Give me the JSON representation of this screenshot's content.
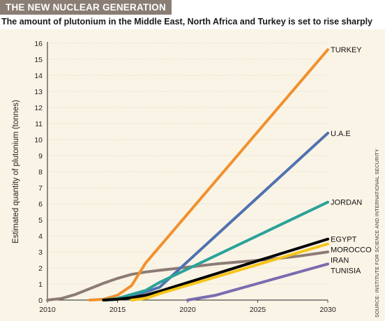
{
  "header": {
    "title": "THE NEW NUCLEAR GENERATION",
    "subtitle": "The amount of plutonium in the Middle East, North Africa and Turkey is set to rise sharply"
  },
  "source": "SOURCE: INSTITUTE FOR SCIENCE AND INTERNATIONAL SECURITY",
  "colors": {
    "banner": "#8a7d74",
    "plot_background": "#faf4e6",
    "grid": "#c8bfae"
  },
  "chart_data": {
    "type": "line",
    "title": "The amount of plutonium in the Middle East, North Africa and Turkey is set to rise sharply",
    "xlabel": "",
    "ylabel": "Estimated quantity of plutonium (tonnes)",
    "xlim": [
      2010,
      2030
    ],
    "ylim": [
      0,
      16
    ],
    "x_ticks": [
      2010,
      2015,
      2020,
      2025,
      2030
    ],
    "y_ticks": [
      0,
      1,
      2,
      3,
      4,
      5,
      6,
      7,
      8,
      9,
      10,
      11,
      12,
      13,
      14,
      15,
      16
    ],
    "grid": "horizontal",
    "legend": "labels at right end of each line",
    "series": [
      {
        "name": "IRAN",
        "color": "#8c7b75",
        "points": [
          [
            2010,
            0
          ],
          [
            2011,
            0.1
          ],
          [
            2012,
            0.35
          ],
          [
            2013,
            0.7
          ],
          [
            2014,
            1.05
          ],
          [
            2015,
            1.35
          ],
          [
            2016,
            1.6
          ],
          [
            2017,
            1.75
          ],
          [
            2018,
            1.85
          ],
          [
            2019,
            1.95
          ],
          [
            2020,
            2.05
          ],
          [
            2022,
            2.25
          ],
          [
            2024,
            2.4
          ],
          [
            2026,
            2.55
          ],
          [
            2028,
            2.75
          ],
          [
            2030,
            3.0
          ]
        ]
      },
      {
        "name": "TURKEY",
        "color": "#f0912e",
        "points": [
          [
            2013,
            0
          ],
          [
            2014,
            0.05
          ],
          [
            2015,
            0.3
          ],
          [
            2016,
            0.9
          ],
          [
            2017,
            2.3
          ],
          [
            2030,
            15.6
          ]
        ]
      },
      {
        "name": "U.A.E",
        "color": "#4f72b0",
        "points": [
          [
            2014,
            0
          ],
          [
            2015,
            0.05
          ],
          [
            2016,
            0.25
          ],
          [
            2017,
            0.5
          ],
          [
            2018,
            0.8
          ],
          [
            2030,
            10.4
          ]
        ]
      },
      {
        "name": "JORDAN",
        "color": "#2aa29a",
        "points": [
          [
            2014,
            0
          ],
          [
            2015,
            0.1
          ],
          [
            2016,
            0.35
          ],
          [
            2017,
            0.6
          ],
          [
            2018,
            1.1
          ],
          [
            2030,
            6.1
          ]
        ]
      },
      {
        "name": "EGYPT",
        "color": "#000000",
        "points": [
          [
            2014,
            0
          ],
          [
            2015,
            0.05
          ],
          [
            2016,
            0.15
          ],
          [
            2017,
            0.3
          ],
          [
            2018,
            0.55
          ],
          [
            2030,
            3.8
          ]
        ]
      },
      {
        "name": "MOROCCO",
        "color": "#f5c518",
        "points": [
          [
            2016,
            0
          ],
          [
            2017,
            0.1
          ],
          [
            2018,
            0.4
          ],
          [
            2030,
            3.5
          ]
        ]
      },
      {
        "name": "TUNISIA",
        "color": "#7a6cb0",
        "points": [
          [
            2020,
            0
          ],
          [
            2022,
            0.3
          ],
          [
            2030,
            2.25
          ]
        ]
      }
    ]
  }
}
